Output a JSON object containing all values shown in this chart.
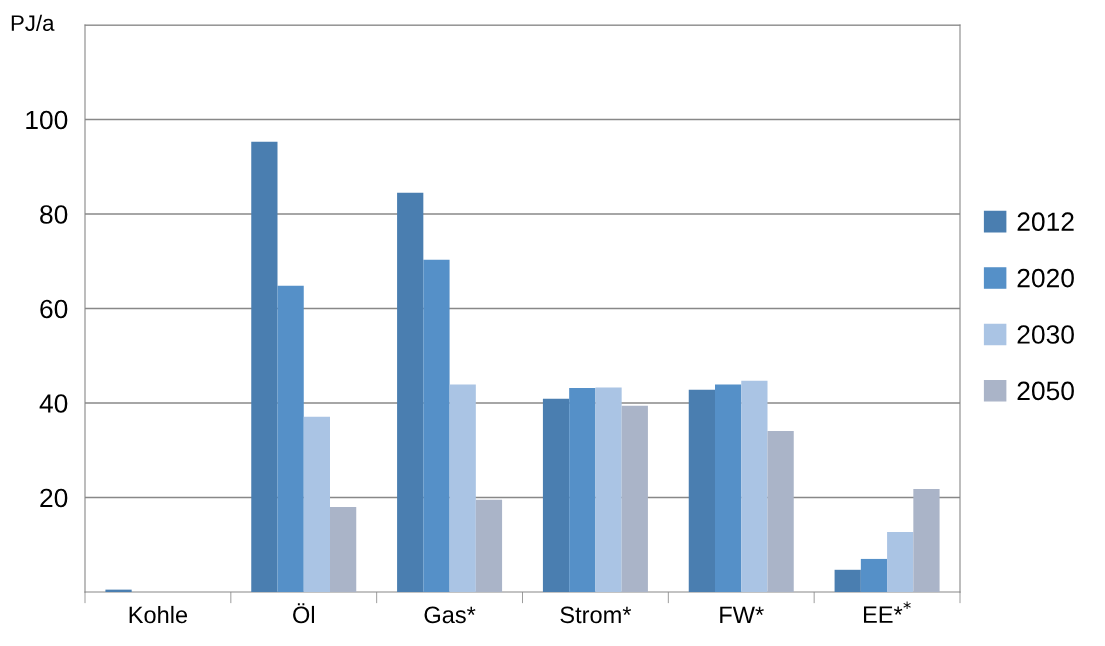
{
  "chart_data": {
    "type": "bar",
    "ylabel": "PJ/a",
    "categories": [
      "Kohle",
      "Öl",
      "Gas*",
      "Strom*",
      "FW*",
      "EE*$^{*}$"
    ],
    "series": [
      {
        "name": "2012",
        "color": "#4a7eb0",
        "values": [
          0.5,
          95.3,
          84.5,
          40.9,
          42.8,
          4.7
        ]
      },
      {
        "name": "2020",
        "color": "#5590c8",
        "values": [
          0,
          64.8,
          70.3,
          43.2,
          43.9,
          7.0
        ]
      },
      {
        "name": "2030",
        "color": "#aac4e4",
        "values": [
          0,
          37.1,
          43.9,
          43.3,
          44.7,
          12.7
        ]
      },
      {
        "name": "2050",
        "color": "#aab4c8",
        "values": [
          0,
          18.0,
          19.5,
          39.4,
          34.1,
          21.8
        ]
      }
    ],
    "ylim": [
      0,
      120
    ],
    "yticks": [
      20,
      40,
      60,
      80,
      100,
      {
        "value": 120,
        "label": null
      }
    ],
    "grid": "y",
    "legend": "right"
  }
}
